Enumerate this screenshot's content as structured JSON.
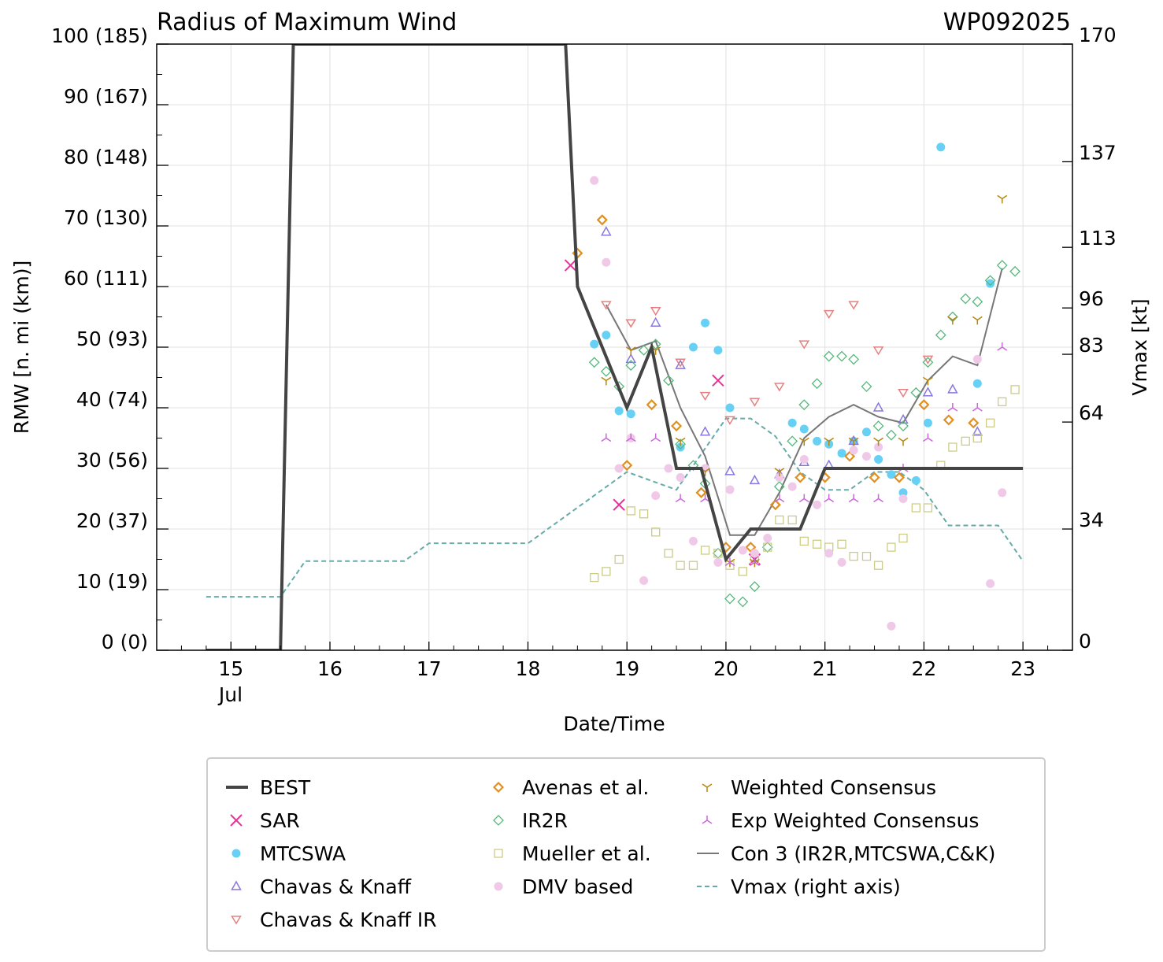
{
  "chart_data": {
    "type": "scatter",
    "title": "Radius of Maximum Wind",
    "storm_id": "WP092025",
    "xlabel": "Date/Time",
    "ylabel": "RMW [n. mi (km)]",
    "y2label": "Vmax [kt]",
    "month_label": "Jul",
    "xlim": [
      14.25,
      23.5
    ],
    "ylim": [
      0,
      100
    ],
    "y2lim": [
      0,
      170
    ],
    "x_ticks": [
      {
        "value": 15,
        "label": "15"
      },
      {
        "value": 16,
        "label": "16"
      },
      {
        "value": 17,
        "label": "17"
      },
      {
        "value": 18,
        "label": "18"
      },
      {
        "value": 19,
        "label": "19"
      },
      {
        "value": 20,
        "label": "20"
      },
      {
        "value": 21,
        "label": "21"
      },
      {
        "value": 22,
        "label": "22"
      },
      {
        "value": 23,
        "label": "23"
      }
    ],
    "y_ticks": [
      {
        "value": 0,
        "label": "0 (0)"
      },
      {
        "value": 10,
        "label": "10 (19)"
      },
      {
        "value": 20,
        "label": "20 (37)"
      },
      {
        "value": 30,
        "label": "30 (56)"
      },
      {
        "value": 40,
        "label": "40 (74)"
      },
      {
        "value": 50,
        "label": "50 (93)"
      },
      {
        "value": 60,
        "label": "60 (111)"
      },
      {
        "value": 70,
        "label": "70 (130)"
      },
      {
        "value": 80,
        "label": "80 (148)"
      },
      {
        "value": 90,
        "label": "90 (167)"
      },
      {
        "value": 100,
        "label": "100 (185)"
      }
    ],
    "y2_ticks": [
      {
        "value": 0,
        "label": "0"
      },
      {
        "value": 34,
        "label": "34"
      },
      {
        "value": 64,
        "label": "64"
      },
      {
        "value": 83,
        "label": "83"
      },
      {
        "value": 96,
        "label": "96"
      },
      {
        "value": 113,
        "label": "113"
      },
      {
        "value": 137,
        "label": "137"
      },
      {
        "value": 170,
        "label": "170"
      }
    ],
    "series": [
      {
        "name": "BEST",
        "marker": "line",
        "color": "#444444",
        "x": [
          14.75,
          15.5,
          15.63,
          15.75,
          18.25,
          18.38,
          18.5,
          18.75,
          19.0,
          19.25,
          19.5,
          19.75,
          20.0,
          20.25,
          20.5,
          20.75,
          21.0,
          21.25,
          21.5,
          21.75,
          22.0,
          22.25,
          22.5,
          22.75,
          23.0
        ],
        "values": [
          0,
          0,
          100,
          100,
          100,
          100,
          60,
          50,
          40,
          50,
          30,
          30,
          15,
          20,
          20,
          20,
          30,
          30,
          30,
          30,
          30,
          30,
          30,
          30,
          30
        ]
      },
      {
        "name": "SAR",
        "marker": "x",
        "color": "#e6339a",
        "x": [
          18.43,
          18.92,
          19.92,
          20.29
        ],
        "values": [
          63.5,
          24,
          44.5,
          15
        ]
      },
      {
        "name": "MTCSWA",
        "marker": "dot",
        "color": "#66d1f5",
        "x": [
          18.67,
          18.79,
          18.92,
          19.04,
          19.54,
          19.67,
          19.79,
          19.92,
          20.04,
          20.67,
          20.79,
          20.92,
          21.04,
          21.17,
          21.29,
          21.42,
          21.54,
          21.67,
          21.79,
          21.92,
          22.04,
          22.17,
          22.54,
          22.67
        ],
        "values": [
          50.5,
          52,
          39.5,
          39,
          33.5,
          50,
          54,
          49.5,
          40,
          37.5,
          36.5,
          34.5,
          34,
          32.5,
          34.5,
          36,
          31.5,
          29,
          26,
          28,
          37.5,
          83,
          44,
          60.5
        ]
      },
      {
        "name": "Chavas & Knaff",
        "marker": "tri-up",
        "color": "#8877dd",
        "x": [
          18.79,
          19.04,
          19.29,
          19.54,
          19.79,
          20.04,
          20.29,
          20.54,
          20.79,
          21.04,
          21.29,
          21.54,
          21.79,
          22.04,
          22.29,
          22.54
        ],
        "values": [
          69,
          48,
          54,
          47,
          36,
          29.5,
          28,
          29,
          31,
          30.5,
          34.5,
          40,
          38,
          42.5,
          43,
          36
        ]
      },
      {
        "name": "Chavas & Knaff IR",
        "marker": "tri-down",
        "color": "#e58080",
        "x": [
          18.79,
          19.04,
          19.29,
          19.54,
          19.79,
          20.04,
          20.29,
          20.54,
          20.79,
          21.04,
          21.29,
          21.54,
          21.79,
          22.04
        ],
        "values": [
          57,
          54,
          56,
          47.5,
          42,
          38,
          41,
          43.5,
          50.5,
          55.5,
          57,
          49.5,
          42.5,
          48
        ]
      },
      {
        "name": "Avenas et al.",
        "marker": "diamond",
        "color": "#e09020",
        "x": [
          18.5,
          18.75,
          19.0,
          19.25,
          19.5,
          19.75,
          20.0,
          20.25,
          20.5,
          20.75,
          21.0,
          21.25,
          21.5,
          21.75,
          22.0,
          22.25,
          22.5
        ],
        "values": [
          65.5,
          71,
          30.5,
          40.5,
          37,
          26,
          17,
          17,
          24,
          28.5,
          28.5,
          32,
          28.5,
          28.5,
          40.5,
          38,
          37.5
        ]
      },
      {
        "name": "IR2R",
        "marker": "diamond-open",
        "color": "#55b87a",
        "x": [
          18.67,
          18.79,
          18.92,
          19.04,
          19.17,
          19.29,
          19.42,
          19.54,
          19.67,
          19.79,
          19.92,
          20.04,
          20.17,
          20.29,
          20.42,
          20.54,
          20.67,
          20.79,
          20.92,
          21.04,
          21.17,
          21.29,
          21.42,
          21.54,
          21.67,
          21.79,
          21.92,
          22.04,
          22.17,
          22.29,
          22.42,
          22.54,
          22.67,
          22.79,
          22.92
        ],
        "values": [
          47.5,
          46,
          43.5,
          47,
          49.5,
          50.5,
          44.5,
          34,
          30.5,
          27.5,
          16,
          8.5,
          8,
          10.5,
          17,
          27,
          34.5,
          40.5,
          44,
          48.5,
          48.5,
          48,
          43.5,
          37,
          35.5,
          37,
          42.5,
          47.5,
          52,
          55,
          58,
          57.5,
          61,
          63.5,
          62.5
        ]
      },
      {
        "name": "Mueller et al.",
        "marker": "square",
        "color": "#cccc88",
        "x": [
          18.67,
          18.79,
          18.92,
          19.04,
          19.17,
          19.29,
          19.42,
          19.54,
          19.67,
          19.79,
          19.92,
          20.04,
          20.17,
          20.29,
          20.42,
          20.54,
          20.67,
          20.79,
          20.92,
          21.04,
          21.17,
          21.29,
          21.42,
          21.54,
          21.67,
          21.79,
          21.92,
          22.04,
          22.17,
          22.29,
          22.42,
          22.54,
          22.67,
          22.79,
          22.92
        ],
        "values": [
          12,
          13,
          15,
          23,
          22.5,
          19.5,
          16,
          14,
          14,
          16.5,
          16,
          14,
          13,
          15,
          17,
          21.5,
          21.5,
          18,
          17.5,
          17,
          17.5,
          15.5,
          15.5,
          14,
          17,
          18.5,
          23.5,
          23.5,
          30.5,
          33.5,
          34.5,
          35,
          37.5,
          41,
          43
        ]
      },
      {
        "name": "DMV based",
        "marker": "dot",
        "color": "#f0c8e8",
        "x": [
          18.67,
          18.79,
          18.92,
          19.04,
          19.17,
          19.29,
          19.42,
          19.54,
          19.67,
          19.79,
          19.92,
          20.04,
          20.17,
          20.29,
          20.42,
          20.54,
          20.67,
          20.79,
          20.92,
          21.04,
          21.17,
          21.29,
          21.42,
          21.54,
          21.67,
          21.79,
          22.54,
          22.67,
          22.79
        ],
        "values": [
          77.5,
          64,
          30,
          35,
          11.5,
          25.5,
          30,
          28.5,
          18,
          30,
          14.5,
          26.5,
          16.5,
          16,
          18.5,
          28.5,
          27,
          31.5,
          24,
          16,
          14.5,
          33,
          32,
          33.5,
          4,
          25,
          48,
          11,
          26
        ]
      },
      {
        "name": "Weighted Consensus",
        "marker": "y-up",
        "color": "#b8860b",
        "x": [
          18.79,
          19.04,
          19.29,
          19.54,
          19.79,
          20.04,
          20.29,
          20.54,
          20.79,
          21.04,
          21.29,
          21.54,
          21.79,
          22.04,
          22.29,
          22.54,
          22.79
        ],
        "values": [
          44.5,
          49.5,
          49.5,
          34.5,
          29.5,
          14.5,
          14.5,
          29.5,
          34.5,
          34.5,
          34.5,
          34.5,
          34.5,
          44.5,
          54.5,
          54.5,
          74.5
        ]
      },
      {
        "name": "Exp Weighted Consensus",
        "marker": "y-down",
        "color": "#cc66dd",
        "x": [
          18.79,
          19.04,
          19.29,
          19.54,
          19.79,
          20.04,
          20.29,
          20.54,
          20.79,
          21.04,
          21.29,
          21.54,
          21.79,
          22.04,
          22.29,
          22.54,
          22.79
        ],
        "values": [
          35,
          35,
          35,
          25,
          25,
          14.5,
          14.5,
          25,
          25,
          25,
          25,
          25,
          30,
          35,
          40,
          40,
          50
        ]
      },
      {
        "name": "Con 3 (IR2R,MTCSWA,C&K)",
        "marker": "line",
        "color": "#777777",
        "x": [
          18.79,
          19.04,
          19.29,
          19.54,
          19.79,
          20.04,
          20.29,
          20.54,
          20.79,
          21.04,
          21.29,
          21.54,
          21.79,
          22.04,
          22.29,
          22.54,
          22.79
        ],
        "values": [
          57,
          49.5,
          51,
          40,
          32,
          19,
          19,
          26,
          35,
          38.5,
          40.5,
          38.5,
          37.5,
          44.5,
          48.5,
          47,
          63
        ]
      },
      {
        "name": "Vmax (right axis)",
        "marker": "dashed",
        "color": "#66aaaa",
        "axis": "right",
        "x": [
          14.75,
          15.5,
          15.75,
          16.0,
          16.75,
          17.0,
          18.0,
          19.0,
          19.5,
          20.0,
          20.25,
          20.5,
          20.75,
          21.0,
          21.25,
          21.5,
          21.75,
          22.0,
          22.25,
          22.5,
          22.75,
          23.0
        ],
        "values": [
          15,
          15,
          25,
          25,
          25,
          30,
          30,
          50,
          45,
          65,
          65,
          60,
          50,
          45,
          45,
          50,
          50,
          45,
          35,
          35,
          35,
          25
        ]
      }
    ]
  }
}
